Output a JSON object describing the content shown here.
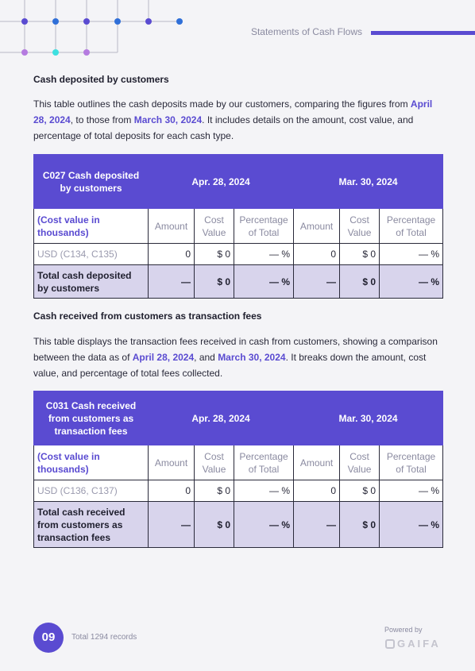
{
  "header": {
    "title": "Statements of Cash Flows"
  },
  "colors": {
    "accent": "#5a4bd1",
    "total_row": "#d8d4ec",
    "background": "#f4f4f7"
  },
  "section1": {
    "title": "Cash deposited by customers",
    "para": {
      "p1": "This table outlines the cash deposits made by our customers, comparing the figures from ",
      "d1": "April 28, 2024",
      "p2": ", to those from ",
      "d2": "March 30, 2024",
      "p3": ". It includes details on the amount, cost value, and percentage of total deposits for each cash type."
    },
    "table": {
      "head": {
        "label": "C027 Cash deposited by customers",
        "period1": "Apr. 28, 2024",
        "period2": "Mar. 30, 2024"
      },
      "sub": {
        "label": "(Cost value in thousands)",
        "amount": "Amount",
        "cost": "Cost Value",
        "pct": "Percentage of Total"
      },
      "row": {
        "label": "USD (C134, C135)",
        "a1": "0",
        "c1": "$ 0",
        "p1": "— %",
        "a2": "0",
        "c2": "$ 0",
        "p2": "— %"
      },
      "total": {
        "label": "Total cash deposited by customers",
        "a1": "—",
        "c1": "$ 0",
        "p1": "— %",
        "a2": "—",
        "c2": "$ 0",
        "p2": "— %"
      }
    }
  },
  "section2": {
    "title": "Cash received from customers as transaction fees",
    "para": {
      "p1": "This table displays the transaction fees received in cash from customers, showing a comparison between the data as of ",
      "d1": "April 28, 2024",
      "p2": ", and ",
      "d2": "March 30, 2024",
      "p3": ". It breaks down the amount, cost value, and percentage of total fees collected."
    },
    "table": {
      "head": {
        "label": "C031 Cash received from customers as transaction fees",
        "period1": "Apr. 28, 2024",
        "period2": "Mar. 30, 2024"
      },
      "sub": {
        "label": "(Cost value in thousands)",
        "amount": "Amount",
        "cost": "Cost Value",
        "pct": "Percentage of Total"
      },
      "row": {
        "label": "USD (C136, C137)",
        "a1": "0",
        "c1": "$ 0",
        "p1": "— %",
        "a2": "0",
        "c2": "$ 0",
        "p2": "— %"
      },
      "total": {
        "label": "Total cash received from customers as transaction fees",
        "a1": "—",
        "c1": "$ 0",
        "p1": "— %",
        "a2": "—",
        "c2": "$ 0",
        "p2": "— %"
      }
    }
  },
  "footer": {
    "page_number": "09",
    "records": "Total 1294 records",
    "powered_by": "Powered by",
    "brand": "GAIFA",
    "brand_icon": "gaifa-logo-icon"
  }
}
